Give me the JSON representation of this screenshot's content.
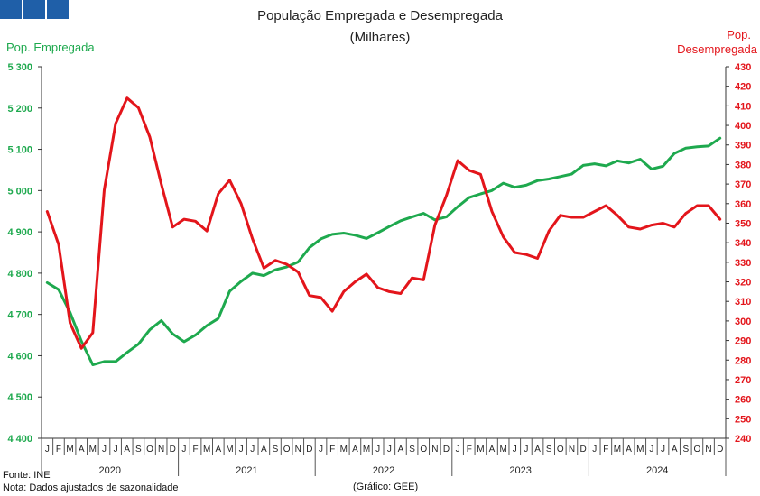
{
  "header": {
    "title": "População Empregada e Desempregada",
    "subtitle": "(Milhares)"
  },
  "footer": {
    "source": "Fonte: INE",
    "note": "Nota: Dados ajustados de sazonalidade",
    "credit": "(Gráfico: GEE)"
  },
  "chart_data": {
    "type": "line",
    "left_axis_label": "Pop. Empregada",
    "right_axis_label_line1": "Pop.",
    "right_axis_label_line2": "Desempregada",
    "ylim_left": [
      4400,
      5300
    ],
    "ylim_right": [
      240,
      430
    ],
    "yticks_left": [
      "4 400",
      "4 500",
      "4 600",
      "4 700",
      "4 800",
      "4 900",
      "5 000",
      "5 100",
      "5 200",
      "5 300"
    ],
    "yticks_right": [
      "240",
      "250",
      "260",
      "270",
      "280",
      "290",
      "300",
      "310",
      "320",
      "330",
      "340",
      "350",
      "360",
      "370",
      "380",
      "390",
      "400",
      "410",
      "420",
      "430"
    ],
    "month_labels": [
      "J",
      "F",
      "M",
      "A",
      "M",
      "J",
      "J",
      "A",
      "S",
      "O",
      "N",
      "D"
    ],
    "years": [
      "2020",
      "2021",
      "2022",
      "2023",
      "2024"
    ],
    "grid": false,
    "colors": {
      "employed": "#1ea94e",
      "unemployed": "#e3151b"
    },
    "series": [
      {
        "name": "Pop. Empregada",
        "axis": "left",
        "values": [
          4777,
          4760,
          4705,
          4635,
          4578,
          4586,
          4586,
          4608,
          4628,
          4663,
          4685,
          4653,
          4634,
          4650,
          4673,
          4690,
          4756,
          4780,
          4800,
          4794,
          4808,
          4815,
          4827,
          4862,
          4883,
          4894,
          4897,
          4892,
          4884,
          4898,
          4913,
          4927,
          4936,
          4945,
          4929,
          4936,
          4961,
          4983,
          4992,
          5000,
          5018,
          5008,
          5013,
          5024,
          5028,
          5034,
          5040,
          5061,
          5065,
          5060,
          5072,
          5067,
          5076,
          5052,
          5059,
          5090,
          5103,
          5106,
          5108,
          5127
        ]
      },
      {
        "name": "Pop. Desempregada",
        "axis": "right",
        "values": [
          356,
          339,
          299,
          286,
          294,
          367,
          401,
          414,
          409,
          394,
          370,
          348,
          352,
          351,
          346,
          365,
          372,
          360,
          342,
          327,
          331,
          329,
          325,
          313,
          312,
          305,
          315,
          320,
          324,
          317,
          315,
          314,
          322,
          321,
          349,
          364,
          382,
          377,
          375,
          356,
          343,
          335,
          334,
          332,
          346,
          354,
          353,
          353,
          356,
          359,
          354,
          348,
          347,
          349,
          350,
          348,
          355,
          359,
          359,
          352
        ]
      }
    ]
  }
}
